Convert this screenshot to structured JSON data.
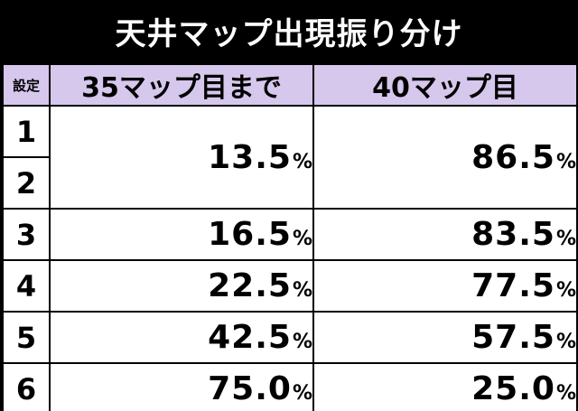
{
  "title": "天井マップ出現振り分け",
  "table": {
    "header": {
      "setting": "設定",
      "col_a": "35マップ目まで",
      "col_b": "40マップ目"
    },
    "percent_sign": "%",
    "rows": [
      {
        "setting": "1",
        "a": "13.5",
        "b": "86.5"
      },
      {
        "setting": "2"
      },
      {
        "setting": "3",
        "a": "16.5",
        "b": "83.5"
      },
      {
        "setting": "4",
        "a": "22.5",
        "b": "77.5"
      },
      {
        "setting": "5",
        "a": "42.5",
        "b": "57.5"
      },
      {
        "setting": "6",
        "a": "75.0",
        "b": "25.0"
      }
    ]
  },
  "colors": {
    "header_background": "#d6c7ec",
    "title_background": "#000000",
    "cell_background": "#ffffff"
  }
}
